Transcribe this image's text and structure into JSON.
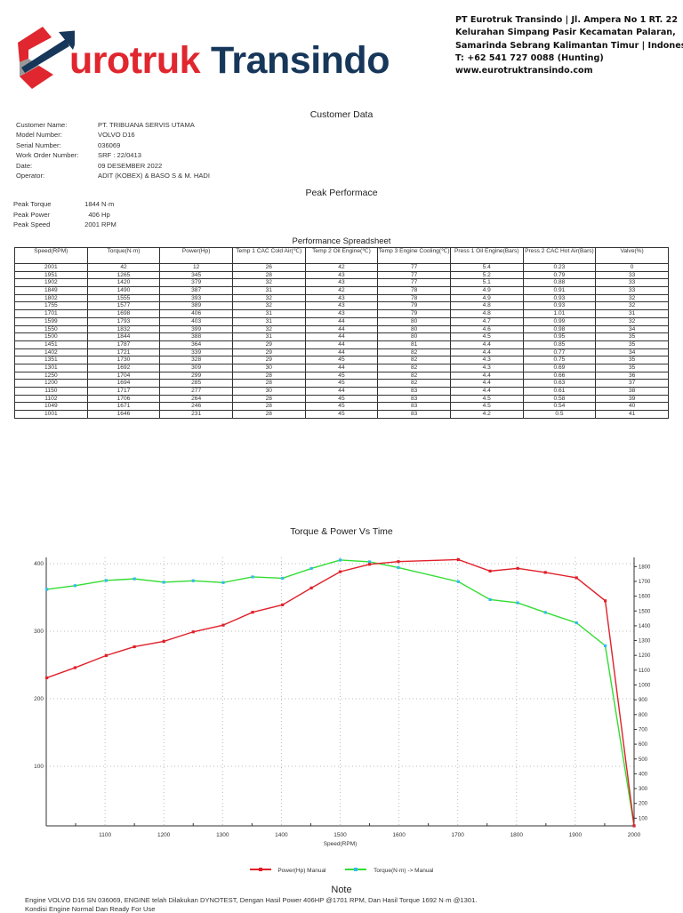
{
  "header": {
    "logo_text_1": "urotruk",
    "logo_text_2": "Transindo",
    "address_lines": [
      "PT Eurotruk Transindo | Jl. Ampera No 1 RT. 22",
      "Kelurahan Simpang Pasir Kecamatan Palaran,",
      "Samarinda Sebrang Kalimantan Timur | Indonesia",
      "T: +62 541 727 0088 (Hunting)",
      "www.eurotruktransindo.com"
    ],
    "colors": {
      "brand_red": "#e0262e",
      "brand_navy": "#16375a"
    }
  },
  "customer": {
    "title": "Customer Data",
    "fields": [
      {
        "label": "Customer Name:",
        "value": "PT. TRIBUANA SERVIS UTAMA"
      },
      {
        "label": "Model Number:",
        "value": "VOLVO D16"
      },
      {
        "label": "Serial Number:",
        "value": "036069"
      },
      {
        "label": "Work Order Number:",
        "value": "SRF : 22/0413"
      },
      {
        "label": "Date:",
        "value": "09 DESEMBER 2022"
      },
      {
        "label": "Operator:",
        "value": "ADIT (KOBEX) & BASO S & M. HADI"
      }
    ]
  },
  "peak": {
    "title": "Peak Performace",
    "fields": [
      {
        "label": "Peak Torque",
        "value": "1844",
        "unit": "N·m"
      },
      {
        "label": "Peak Power",
        "value": "406",
        "unit": "Hp"
      },
      {
        "label": "Peak Speed",
        "value": "2001",
        "unit": "RPM"
      }
    ]
  },
  "spreadsheet": {
    "title": "Performance Spreadsheet",
    "columns": [
      "Speed(RPM)",
      "Torque(N·m)",
      "Power(Hp)",
      "Temp 1 CAC Cold Air(℃)",
      "Temp 2 Oil Engine(℃)",
      "Temp 3 Engine Cooling(℃)",
      "Press 1 Oil Engine(Bars)",
      "Press 2 CAC Hot Air(Bars)",
      "Valve(%)"
    ],
    "rows": [
      [
        "2001",
        "42",
        "12",
        "26",
        "42",
        "77",
        "5.4",
        "0.23",
        "0"
      ],
      [
        "1951",
        "1265",
        "345",
        "28",
        "43",
        "77",
        "5.2",
        "0.79",
        "33"
      ],
      [
        "1902",
        "1420",
        "379",
        "32",
        "43",
        "77",
        "5.1",
        "0.88",
        "33"
      ],
      [
        "1849",
        "1490",
        "387",
        "31",
        "42",
        "78",
        "4.9",
        "0.91",
        "33"
      ],
      [
        "1802",
        "1555",
        "393",
        "32",
        "43",
        "78",
        "4.9",
        "0.93",
        "32"
      ],
      [
        "1755",
        "1577",
        "389",
        "32",
        "43",
        "79",
        "4.8",
        "0.93",
        "32"
      ],
      [
        "1701",
        "1698",
        "406",
        "31",
        "43",
        "79",
        "4.8",
        "1.01",
        "31"
      ],
      [
        "1599",
        "1793",
        "403",
        "31",
        "44",
        "80",
        "4.7",
        "0.99",
        "32"
      ],
      [
        "1550",
        "1832",
        "399",
        "32",
        "44",
        "80",
        "4.6",
        "0.98",
        "34"
      ],
      [
        "1500",
        "1844",
        "388",
        "31",
        "44",
        "80",
        "4.5",
        "0.95",
        "35"
      ],
      [
        "1451",
        "1787",
        "364",
        "29",
        "44",
        "81",
        "4.4",
        "0.85",
        "35"
      ],
      [
        "1402",
        "1721",
        "339",
        "29",
        "44",
        "82",
        "4.4",
        "0.77",
        "34"
      ],
      [
        "1351",
        "1730",
        "328",
        "29",
        "45",
        "82",
        "4.3",
        "0.75",
        "35"
      ],
      [
        "1301",
        "1692",
        "309",
        "30",
        "44",
        "82",
        "4.3",
        "0.69",
        "35"
      ],
      [
        "1250",
        "1704",
        "299",
        "28",
        "45",
        "82",
        "4.4",
        "0.66",
        "36"
      ],
      [
        "1200",
        "1694",
        "285",
        "28",
        "45",
        "82",
        "4.4",
        "0.63",
        "37"
      ],
      [
        "1150",
        "1717",
        "277",
        "30",
        "44",
        "83",
        "4.4",
        "0.61",
        "38"
      ],
      [
        "1102",
        "1706",
        "264",
        "28",
        "45",
        "83",
        "4.5",
        "0.58",
        "39"
      ],
      [
        "1049",
        "1671",
        "246",
        "28",
        "45",
        "83",
        "4.5",
        "0.54",
        "40"
      ],
      [
        "1001",
        "1646",
        "231",
        "28",
        "45",
        "83",
        "4.2",
        "0.5",
        "41"
      ]
    ]
  },
  "chart_data": {
    "type": "line",
    "title": "Torque & Power Vs Time",
    "xlabel": "Speed(RPM)",
    "xlim": [
      1000,
      2000
    ],
    "x_ticks": [
      "1100",
      "1200",
      "1300",
      "1400",
      "1500",
      "1600",
      "1700",
      "1800",
      "1900",
      "2000"
    ],
    "y_left_ticks": [
      "100",
      "200",
      "300",
      "400"
    ],
    "y_right_ticks": [
      "100",
      "200",
      "300",
      "400",
      "500",
      "600",
      "700",
      "800",
      "900",
      "1000",
      "1100",
      "1200",
      "1300",
      "1400",
      "1500",
      "1600",
      "1700",
      "1800"
    ],
    "grid": true,
    "legend_position": "bottom",
    "x": [
      2001,
      1951,
      1902,
      1849,
      1802,
      1755,
      1701,
      1599,
      1550,
      1500,
      1451,
      1402,
      1351,
      1301,
      1250,
      1200,
      1150,
      1102,
      1049,
      1001
    ],
    "series": [
      {
        "name": "Power(Hp) Manual",
        "axis": "left",
        "color": "#e0202a",
        "values": [
          12,
          345,
          379,
          387,
          393,
          389,
          406,
          403,
          399,
          388,
          364,
          339,
          328,
          309,
          299,
          285,
          277,
          264,
          246,
          231
        ]
      },
      {
        "name": "Torque(N·m) -> Manual",
        "axis": "right",
        "color": "#33dd33",
        "marker_color": "#33bbee",
        "values": [
          42,
          1265,
          1420,
          1490,
          1555,
          1577,
          1698,
          1793,
          1832,
          1844,
          1787,
          1721,
          1730,
          1692,
          1704,
          1694,
          1717,
          1706,
          1671,
          1646
        ]
      }
    ]
  },
  "note": {
    "title": "Note",
    "lines": [
      "Engine VOLVO D16 SN 036069, ENGINE telah Dilakukan DYNOTEST, Dengan Hasil Power 406HP @1701 RPM, Dan Hasil Torque 1692 N·m @1301.",
      "Kondisi Engine Normal Dan Ready For Use"
    ]
  }
}
